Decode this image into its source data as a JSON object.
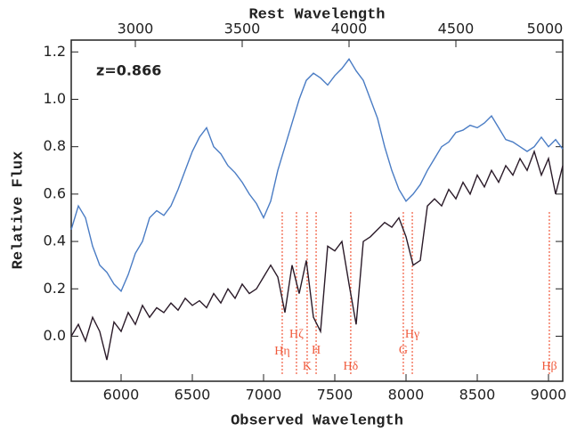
{
  "chart_data": {
    "type": "line",
    "x_label": "Observed Wavelength",
    "x2_label": "Rest Wavelength",
    "y_label": "Relative Flux",
    "annotation": "z=0.866",
    "xlim": [
      5650,
      9100
    ],
    "xticks": [
      6000,
      6500,
      7000,
      7500,
      8000,
      8500,
      9000
    ],
    "x2lim": [
      2700,
      5000
    ],
    "x2ticks": [
      3000,
      3500,
      4000,
      4500,
      5000
    ],
    "ylim": [
      -0.19,
      1.25
    ],
    "yticks": [
      {
        "value": 0,
        "label": "0.0"
      },
      0.2,
      0.4,
      0.6,
      0.8,
      {
        "value": 1,
        "label": "1.0"
      },
      1.2
    ],
    "x": [
      5650,
      5700,
      5750,
      5800,
      5850,
      5900,
      5950,
      6000,
      6050,
      6100,
      6150,
      6200,
      6250,
      6300,
      6350,
      6400,
      6450,
      6500,
      6550,
      6600,
      6650,
      6700,
      6750,
      6800,
      6850,
      6900,
      6950,
      7000,
      7050,
      7100,
      7150,
      7200,
      7250,
      7300,
      7350,
      7400,
      7450,
      7500,
      7550,
      7600,
      7650,
      7700,
      7750,
      7800,
      7850,
      7900,
      7950,
      8000,
      8050,
      8100,
      8150,
      8200,
      8250,
      8300,
      8350,
      8400,
      8450,
      8500,
      8550,
      8600,
      8650,
      8700,
      8750,
      8800,
      8850,
      8900,
      8950,
      9000,
      9050,
      9100
    ],
    "series": [
      {
        "color": "#4a7cc4",
        "values": [
          0.45,
          0.55,
          0.5,
          0.38,
          0.3,
          0.27,
          0.22,
          0.19,
          0.26,
          0.35,
          0.4,
          0.5,
          0.53,
          0.51,
          0.55,
          0.62,
          0.7,
          0.78,
          0.84,
          0.88,
          0.8,
          0.77,
          0.72,
          0.69,
          0.65,
          0.6,
          0.56,
          0.5,
          0.57,
          0.7,
          0.8,
          0.9,
          1.0,
          1.08,
          1.11,
          1.09,
          1.06,
          1.1,
          1.13,
          1.17,
          1.12,
          1.08,
          1.0,
          0.92,
          0.8,
          0.7,
          0.62,
          0.57,
          0.6,
          0.64,
          0.7,
          0.75,
          0.8,
          0.82,
          0.86,
          0.87,
          0.89,
          0.88,
          0.9,
          0.93,
          0.88,
          0.83,
          0.82,
          0.8,
          0.78,
          0.8,
          0.84,
          0.8,
          0.83,
          0.79
        ]
      },
      {
        "color": "#2a1a28",
        "values": [
          0.0,
          0.05,
          -0.02,
          0.08,
          0.02,
          -0.1,
          0.06,
          0.02,
          0.1,
          0.05,
          0.13,
          0.08,
          0.12,
          0.1,
          0.14,
          0.11,
          0.16,
          0.13,
          0.15,
          0.12,
          0.18,
          0.14,
          0.2,
          0.16,
          0.22,
          0.18,
          0.2,
          0.25,
          0.3,
          0.25,
          0.1,
          0.3,
          0.18,
          0.32,
          0.08,
          0.02,
          0.38,
          0.36,
          0.4,
          0.22,
          0.05,
          0.4,
          0.42,
          0.45,
          0.48,
          0.46,
          0.5,
          0.42,
          0.3,
          0.32,
          0.55,
          0.58,
          0.55,
          0.62,
          0.58,
          0.65,
          0.6,
          0.68,
          0.63,
          0.7,
          0.65,
          0.72,
          0.68,
          0.75,
          0.7,
          0.78,
          0.68,
          0.75,
          0.6,
          0.72
        ]
      }
    ],
    "line_color": "#f05a3c",
    "lines": [
      {
        "label": "Hη",
        "x": 7131
      },
      {
        "label": "Hζ",
        "x": 7231
      },
      {
        "label": "K",
        "x": 7306
      },
      {
        "label": "H",
        "x": 7369
      },
      {
        "label": "Hδ",
        "x": 7612
      },
      {
        "label": "G",
        "x": 7981
      },
      {
        "label": "Hγ",
        "x": 8044
      },
      {
        "label": "Hβ",
        "x": 9006
      }
    ]
  }
}
